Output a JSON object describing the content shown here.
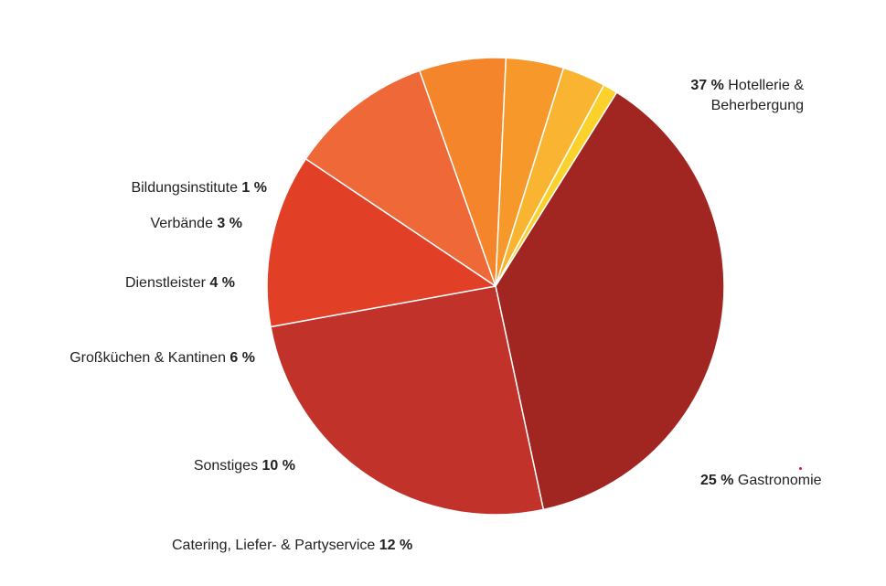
{
  "chart_data": {
    "type": "pie",
    "title": "",
    "slices": [
      {
        "label": "Hotellerie & Beherbergung",
        "label_line1": "Hotellerie &",
        "label_line2": "Beherbergung",
        "value": 37,
        "pct_text": "37 %",
        "color": "#a12622"
      },
      {
        "label": "Gastronomie",
        "value": 25,
        "pct_text": "25 %",
        "color": "#c1322a"
      },
      {
        "label": "Catering, Liefer- & Partyservice",
        "value": 12,
        "pct_text": "12 %",
        "color": "#e23f27"
      },
      {
        "label": "Sonstiges",
        "value": 10,
        "pct_text": "10 %",
        "color": "#ef6838"
      },
      {
        "label": "Großküchen & Kantinen",
        "value": 6,
        "pct_text": "6 %",
        "color": "#f4852a"
      },
      {
        "label": "Dienstleister",
        "value": 4,
        "pct_text": "4 %",
        "color": "#f6992a"
      },
      {
        "label": "Verbände",
        "value": 3,
        "pct_text": "3 %",
        "color": "#f9b531"
      },
      {
        "label": "Bildungsinstitute",
        "value": 1,
        "pct_text": "1 %",
        "color": "#fbd22c"
      }
    ]
  }
}
